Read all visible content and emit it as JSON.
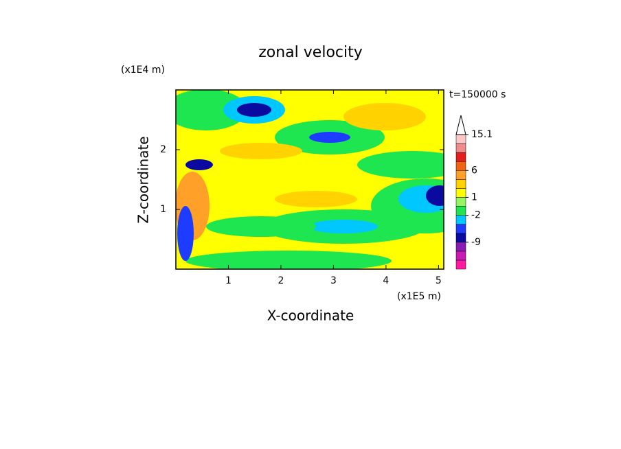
{
  "chart_data": {
    "type": "contour",
    "title": "zonal velocity",
    "x_label": "X-coordinate",
    "y_label": "Z-coordinate",
    "x_unit": "(x1E5 m)",
    "y_unit": "(x1E4 m)",
    "annotation": "t=150000 s",
    "xlim": [
      0,
      5.1
    ],
    "ylim": [
      0,
      3
    ],
    "xticks": [
      1,
      2,
      3,
      4,
      5
    ],
    "yticks": [
      1,
      2
    ],
    "colorbar": {
      "levels": [
        -21,
        -16,
        -12,
        -9,
        -6,
        -4,
        -2,
        -1,
        1,
        2,
        3,
        6,
        8,
        10,
        12.5,
        15.1
      ],
      "colors": [
        "#ff1aa0",
        "#c81ab4",
        "#8c1ab4",
        "#0a0aa0",
        "#1e3cff",
        "#00c8ff",
        "#1ee650",
        "#96f564",
        "#ffff00",
        "#ffd200",
        "#ffa028",
        "#f06414",
        "#e61e1e",
        "#f08c8c",
        "#ffc8c8"
      ],
      "ticks": [
        -9,
        -2,
        1,
        6,
        15.1
      ]
    }
  }
}
